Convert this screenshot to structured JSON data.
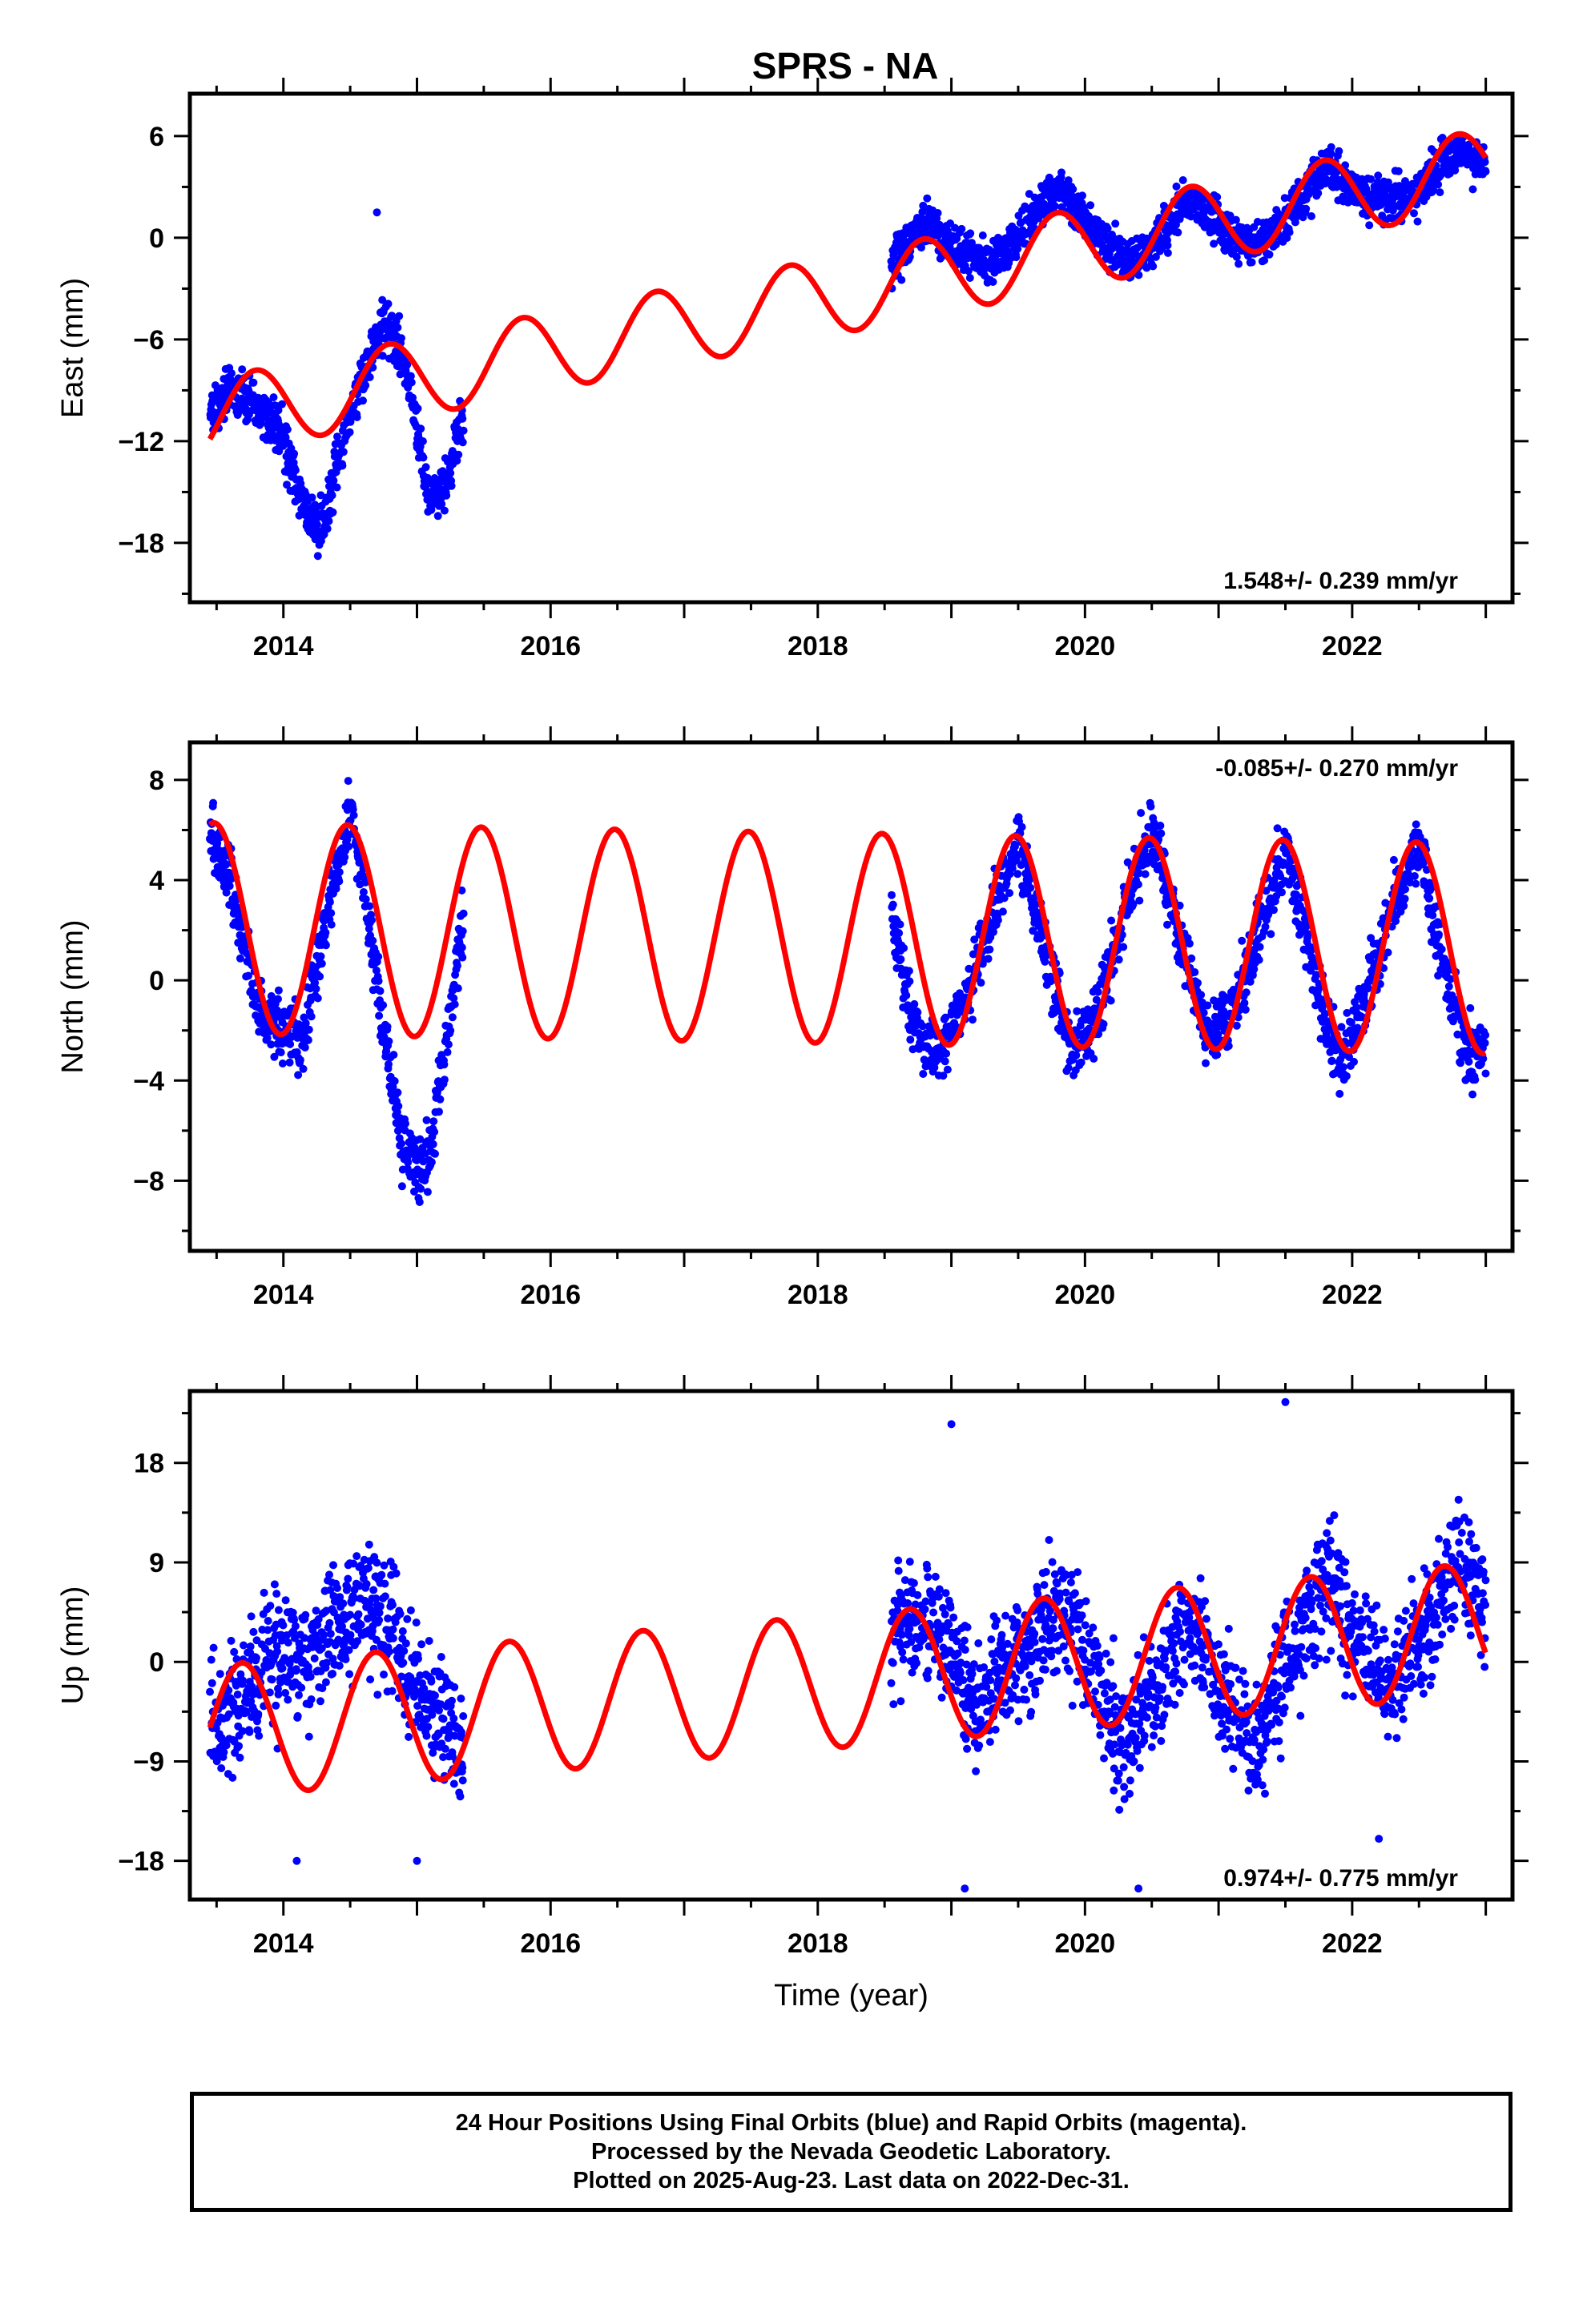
{
  "title": "SPRS - NA",
  "colors": {
    "data": "#0000ff",
    "model": "#ff0000",
    "frame": "#000000"
  },
  "chart_data": [
    {
      "type": "scatter",
      "name": "east",
      "ylabel": "East (mm)",
      "xlabel": "",
      "xlim": [
        2013.3,
        2023.2
      ],
      "ylim": [
        -21.5,
        8.5
      ],
      "xticks": [
        "2014",
        "2016",
        "2018",
        "2020",
        "2022"
      ],
      "yticks": [
        "6",
        "0",
        "-6",
        "-12",
        "-18"
      ],
      "rate_text": "1.548+/- 0.239 mm/yr",
      "rate_position": "bottom-right",
      "model": {
        "trend": 1.548,
        "at_2018": -3.6,
        "amp": 2.3,
        "peak_phase": 0.79
      },
      "data_segments": [
        {
          "x": [
            2013.45,
            2015.35
          ],
          "x_knots": [
            2013.45,
            2013.6,
            2013.8,
            2014.0,
            2014.1,
            2014.2,
            2014.3,
            2014.45,
            2014.6,
            2014.75,
            2014.85,
            2015.0,
            2015.1,
            2015.2,
            2015.35
          ],
          "y_knots": [
            -10.5,
            -9.0,
            -9.5,
            -12.0,
            -14.5,
            -17.0,
            -17.0,
            -12.0,
            -8.0,
            -5.0,
            -6.0,
            -11.0,
            -15.5,
            -15.0,
            -10.5
          ],
          "noise": 1.1
        },
        {
          "x": [
            2018.55,
            2023.0
          ],
          "x_knots": [
            2018.55,
            2018.8,
            2019.0,
            2019.3,
            2019.5,
            2019.8,
            2020.0,
            2020.3,
            2020.5,
            2020.8,
            2021.0,
            2021.3,
            2021.5,
            2021.8,
            2022.0,
            2022.3,
            2022.5,
            2022.8,
            2023.0
          ],
          "y_knots": [
            -1.5,
            1.0,
            -0.5,
            -1.5,
            0.0,
            3.2,
            1.0,
            -1.5,
            -0.5,
            2.5,
            0.8,
            -0.5,
            1.0,
            4.2,
            2.8,
            2.2,
            2.8,
            5.2,
            4.0
          ],
          "noise": 0.9
        }
      ],
      "outliers": [
        [
          2014.7,
          1.5
        ]
      ]
    },
    {
      "type": "scatter",
      "name": "north",
      "ylabel": "North (mm)",
      "xlabel": "",
      "xlim": [
        2013.3,
        2023.2
      ],
      "ylim": [
        -10.8,
        9.5
      ],
      "xticks": [
        "2014",
        "2016",
        "2018",
        "2020",
        "2022"
      ],
      "yticks": [
        "8",
        "4",
        "0",
        "-4",
        "-8"
      ],
      "rate_text": "-0.085+/- 0.270 mm/yr",
      "rate_position": "top-right",
      "model": {
        "trend": -0.085,
        "at_2018": 1.7,
        "amp": 4.2,
        "peak_phase": 0.48
      },
      "data_segments": [
        {
          "x": [
            2013.45,
            2015.35
          ],
          "x_knots": [
            2013.45,
            2013.6,
            2013.8,
            2014.0,
            2014.15,
            2014.3,
            2014.5,
            2014.6,
            2014.75,
            2014.9,
            2015.0,
            2015.1,
            2015.2,
            2015.35
          ],
          "y_knots": [
            5.5,
            4.0,
            -1.0,
            -2.0,
            -2.5,
            2.0,
            6.5,
            4.0,
            -2.0,
            -6.5,
            -7.5,
            -7.0,
            -3.0,
            2.5
          ],
          "noise": 1.0
        },
        {
          "x": [
            2018.55,
            2023.0
          ],
          "x_knots": [
            2018.55,
            2018.7,
            2018.9,
            2019.1,
            2019.3,
            2019.5,
            2019.7,
            2019.9,
            2020.1,
            2020.3,
            2020.5,
            2020.7,
            2020.9,
            2021.1,
            2021.3,
            2021.5,
            2021.7,
            2021.9,
            2022.1,
            2022.3,
            2022.5,
            2022.7,
            2022.9,
            2023.0
          ],
          "y_knots": [
            3.0,
            -1.5,
            -3.0,
            -1.0,
            2.5,
            5.5,
            1.0,
            -3.0,
            -1.5,
            3.0,
            6.0,
            2.0,
            -2.0,
            -1.5,
            2.0,
            5.0,
            0.5,
            -3.5,
            -1.0,
            3.0,
            5.5,
            0.0,
            -3.0,
            -2.5
          ],
          "noise": 0.9
        }
      ],
      "outliers": []
    },
    {
      "type": "scatter",
      "name": "up",
      "ylabel": "Up (mm)",
      "xlabel": "Time (year)",
      "xlim": [
        2013.3,
        2023.2
      ],
      "ylim": [
        -21.5,
        24.5
      ],
      "xticks": [
        "2014",
        "2016",
        "2018",
        "2020",
        "2022"
      ],
      "yticks": [
        "18",
        "9",
        "0",
        "-9",
        "-18"
      ],
      "rate_text": "0.974+/- 0.775 mm/yr",
      "rate_position": "bottom-right",
      "model": {
        "trend": 0.974,
        "at_2018": -1.9,
        "amp": 6.0,
        "peak_phase": 0.69
      },
      "data_segments": [
        {
          "x": [
            2013.45,
            2015.35
          ],
          "x_knots": [
            2013.45,
            2013.7,
            2014.0,
            2014.2,
            2014.4,
            2014.6,
            2014.8,
            2015.0,
            2015.2,
            2015.35
          ],
          "y_knots": [
            -6.0,
            -3.0,
            1.0,
            0.0,
            3.0,
            5.5,
            3.0,
            -3.0,
            -6.0,
            -7.0
          ],
          "noise": 4.0
        },
        {
          "x": [
            2018.55,
            2023.0
          ],
          "x_knots": [
            2018.55,
            2018.8,
            2019.0,
            2019.2,
            2019.5,
            2019.8,
            2020.0,
            2020.3,
            2020.5,
            2020.8,
            2021.0,
            2021.3,
            2021.5,
            2021.8,
            2022.0,
            2022.3,
            2022.5,
            2022.8,
            2023.0
          ],
          "y_knots": [
            3.0,
            4.5,
            1.0,
            -4.0,
            0.0,
            5.0,
            0.5,
            -8.0,
            -3.0,
            4.0,
            -2.0,
            -8.0,
            0.0,
            7.5,
            3.0,
            -3.0,
            2.0,
            9.0,
            5.0
          ],
          "noise": 3.8
        }
      ],
      "outliers": [
        [
          2019.0,
          21.5
        ],
        [
          2021.5,
          23.5
        ],
        [
          2019.1,
          -20.5
        ],
        [
          2020.4,
          -20.5
        ],
        [
          2014.1,
          -18.0
        ],
        [
          2015.0,
          -18.0
        ],
        [
          2022.2,
          -16.0
        ]
      ]
    }
  ],
  "caption": {
    "line1": "24 Hour Positions Using Final Orbits (blue) and Rapid Orbits (magenta).",
    "line2": "Processed by the Nevada Geodetic Laboratory.",
    "line3": "Plotted on 2025-Aug-23. Last data on 2022-Dec-31."
  }
}
